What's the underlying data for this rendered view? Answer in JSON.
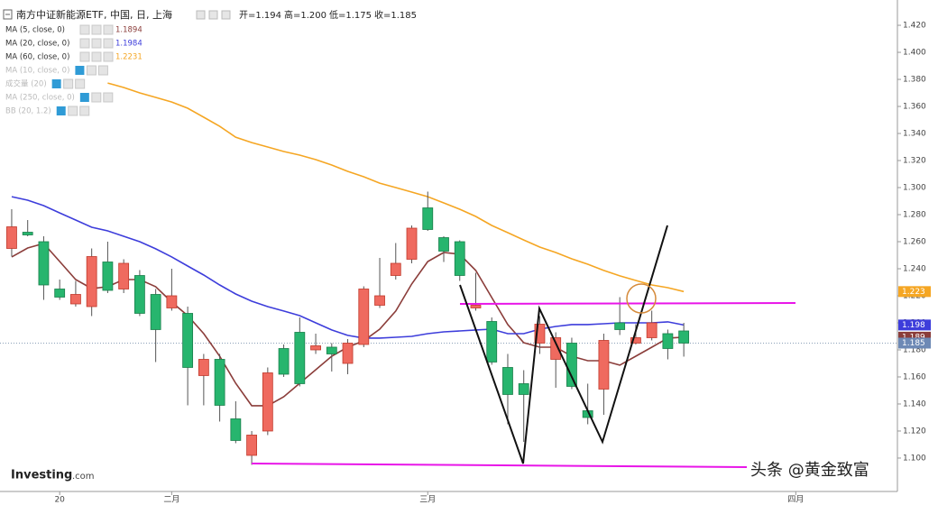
{
  "chart_data": {
    "type": "candlestick",
    "title": "南方中证新能源ETF, 中国, 日, 上海",
    "ohlc_readout": [
      "开=1.194",
      "高=1.200",
      "低=1.175",
      "收=1.185"
    ],
    "x": [
      0,
      1,
      2,
      3,
      4,
      5,
      6,
      7,
      8,
      9,
      10,
      11,
      12,
      13,
      14,
      15,
      16,
      17,
      18,
      19,
      20,
      21,
      22,
      23,
      24,
      25,
      26,
      27,
      28,
      29,
      30,
      31,
      32,
      33,
      34,
      35,
      36,
      37,
      38,
      39,
      40,
      41,
      42
    ],
    "ohlc": {
      "open": [
        1.255,
        1.267,
        1.26,
        1.225,
        1.214,
        1.212,
        1.245,
        1.225,
        1.235,
        1.221,
        1.211,
        1.207,
        1.161,
        1.173,
        1.129,
        1.102,
        1.12,
        1.181,
        1.193,
        1.18,
        1.182,
        1.17,
        1.184,
        1.213,
        1.235,
        1.247,
        1.285,
        1.263,
        1.26,
        1.211,
        1.201,
        1.167,
        1.155,
        1.185,
        1.173,
        1.185,
        1.135,
        1.151,
        1.2,
        1.185,
        1.189,
        1.192,
        1.194
      ],
      "high": [
        1.284,
        1.276,
        1.264,
        1.232,
        1.231,
        1.255,
        1.26,
        1.247,
        1.239,
        1.225,
        1.24,
        1.212,
        1.177,
        1.177,
        1.142,
        1.12,
        1.167,
        1.184,
        1.204,
        1.192,
        1.185,
        1.188,
        1.227,
        1.248,
        1.259,
        1.272,
        1.297,
        1.264,
        1.261,
        1.237,
        1.204,
        1.177,
        1.165,
        1.205,
        1.193,
        1.189,
        1.155,
        1.192,
        1.219,
        1.199,
        1.209,
        1.195,
        1.2
      ],
      "low": [
        1.249,
        1.264,
        1.217,
        1.217,
        1.212,
        1.205,
        1.222,
        1.222,
        1.205,
        1.171,
        1.209,
        1.139,
        1.139,
        1.127,
        1.111,
        1.095,
        1.117,
        1.16,
        1.153,
        1.177,
        1.164,
        1.162,
        1.182,
        1.211,
        1.232,
        1.244,
        1.268,
        1.245,
        1.231,
        1.209,
        1.169,
        1.125,
        1.112,
        1.177,
        1.152,
        1.151,
        1.125,
        1.132,
        1.191,
        1.184,
        1.187,
        1.173,
        1.175
      ],
      "close": [
        1.271,
        1.265,
        1.228,
        1.219,
        1.221,
        1.249,
        1.224,
        1.244,
        1.207,
        1.195,
        1.22,
        1.167,
        1.173,
        1.139,
        1.113,
        1.117,
        1.163,
        1.162,
        1.155,
        1.183,
        1.177,
        1.185,
        1.225,
        1.22,
        1.244,
        1.27,
        1.269,
        1.253,
        1.235,
        1.213,
        1.171,
        1.147,
        1.147,
        1.199,
        1.189,
        1.153,
        1.13,
        1.187,
        1.195,
        1.189,
        1.2,
        1.181,
        1.185
      ],
      "up_color": "#ef6a5f",
      "down_color": "#27b56e"
    },
    "series": [
      {
        "name": "MA (5, close, 0)",
        "color": "#8b3d3a",
        "price_tag": "1.189",
        "values": [
          1.2487,
          1.2553,
          1.2587,
          1.2453,
          1.232,
          1.2253,
          1.2267,
          1.232,
          1.232,
          1.2267,
          1.2153,
          1.2053,
          1.192,
          1.1753,
          1.1553,
          1.1387,
          1.1387,
          1.1453,
          1.1553,
          1.1653,
          1.1753,
          1.182,
          1.1867,
          1.1953,
          1.2087,
          1.2287,
          1.2453,
          1.252,
          1.2507,
          1.2387,
          1.2187,
          1.1987,
          1.1853,
          1.182,
          1.182,
          1.1753,
          1.172,
          1.172,
          1.1687,
          1.1753,
          1.182,
          1.1887,
          1.1894
        ]
      },
      {
        "name": "MA (20, close, 0)",
        "color": "#3d3ddb",
        "price_tag": "1.198",
        "values": [
          1.2933,
          1.2907,
          1.2867,
          1.2813,
          1.276,
          1.2707,
          1.268,
          1.264,
          1.26,
          1.2547,
          1.2487,
          1.242,
          1.2353,
          1.228,
          1.2213,
          1.216,
          1.212,
          1.2087,
          1.2053,
          1.2,
          1.1947,
          1.1907,
          1.1887,
          1.1887,
          1.1893,
          1.19,
          1.192,
          1.1933,
          1.194,
          1.1947,
          1.1953,
          1.192,
          1.192,
          1.1953,
          1.1973,
          1.1987,
          1.1987,
          1.1993,
          1.2,
          1.2,
          1.2,
          1.2007,
          1.1984
        ]
      },
      {
        "name": "MA (60, close, 0)",
        "color": "#f5a623",
        "price_tag": "1.223",
        "values": [
          null,
          null,
          null,
          null,
          null,
          null,
          1.3773,
          1.374,
          1.37,
          1.3667,
          1.3633,
          1.3587,
          1.352,
          1.3453,
          1.3373,
          1.3333,
          1.33,
          1.3267,
          1.324,
          1.3207,
          1.3167,
          1.312,
          1.308,
          1.3033,
          1.3,
          1.2967,
          1.2933,
          1.2887,
          1.284,
          1.2787,
          1.272,
          1.2667,
          1.2613,
          1.256,
          1.252,
          1.2473,
          1.2433,
          1.2387,
          1.2347,
          1.2313,
          1.228,
          1.226,
          1.2231
        ]
      }
    ],
    "hidden_indicators": [
      "MA (10, close, 0)",
      "成交量 (20)",
      "MA (250, close, 0)",
      "BB (20, 1.2)"
    ],
    "xlim": [
      -0.73,
      55.35
    ],
    "xticks": [
      {
        "value": 3,
        "label": "20"
      },
      {
        "value": 10,
        "label": "二月"
      },
      {
        "value": 26,
        "label": "三月"
      },
      {
        "value": 49,
        "label": "四月"
      }
    ],
    "ylim": [
      1.0753,
      1.4387
    ],
    "yticks": [
      {
        "value": 1.1,
        "label": "1.100"
      },
      {
        "value": 1.12,
        "label": "1.120"
      },
      {
        "value": 1.14,
        "label": "1.140"
      },
      {
        "value": 1.16,
        "label": "1.160"
      },
      {
        "value": 1.18,
        "label": "1.180"
      },
      {
        "value": 1.2,
        "label": "1.200"
      },
      {
        "value": 1.22,
        "label": "1.220"
      },
      {
        "value": 1.24,
        "label": "1.240"
      },
      {
        "value": 1.26,
        "label": "1.260"
      },
      {
        "value": 1.28,
        "label": "1.280"
      },
      {
        "value": 1.3,
        "label": "1.300"
      },
      {
        "value": 1.32,
        "label": "1.320"
      },
      {
        "value": 1.34,
        "label": "1.340"
      },
      {
        "value": 1.36,
        "label": "1.360"
      },
      {
        "value": 1.38,
        "label": "1.380"
      },
      {
        "value": 1.4,
        "label": "1.400"
      },
      {
        "value": 1.42,
        "label": "1.420"
      }
    ],
    "logo": [
      "Investing",
      ".com"
    ],
    "watermark": "头条 @黄金致富"
  }
}
